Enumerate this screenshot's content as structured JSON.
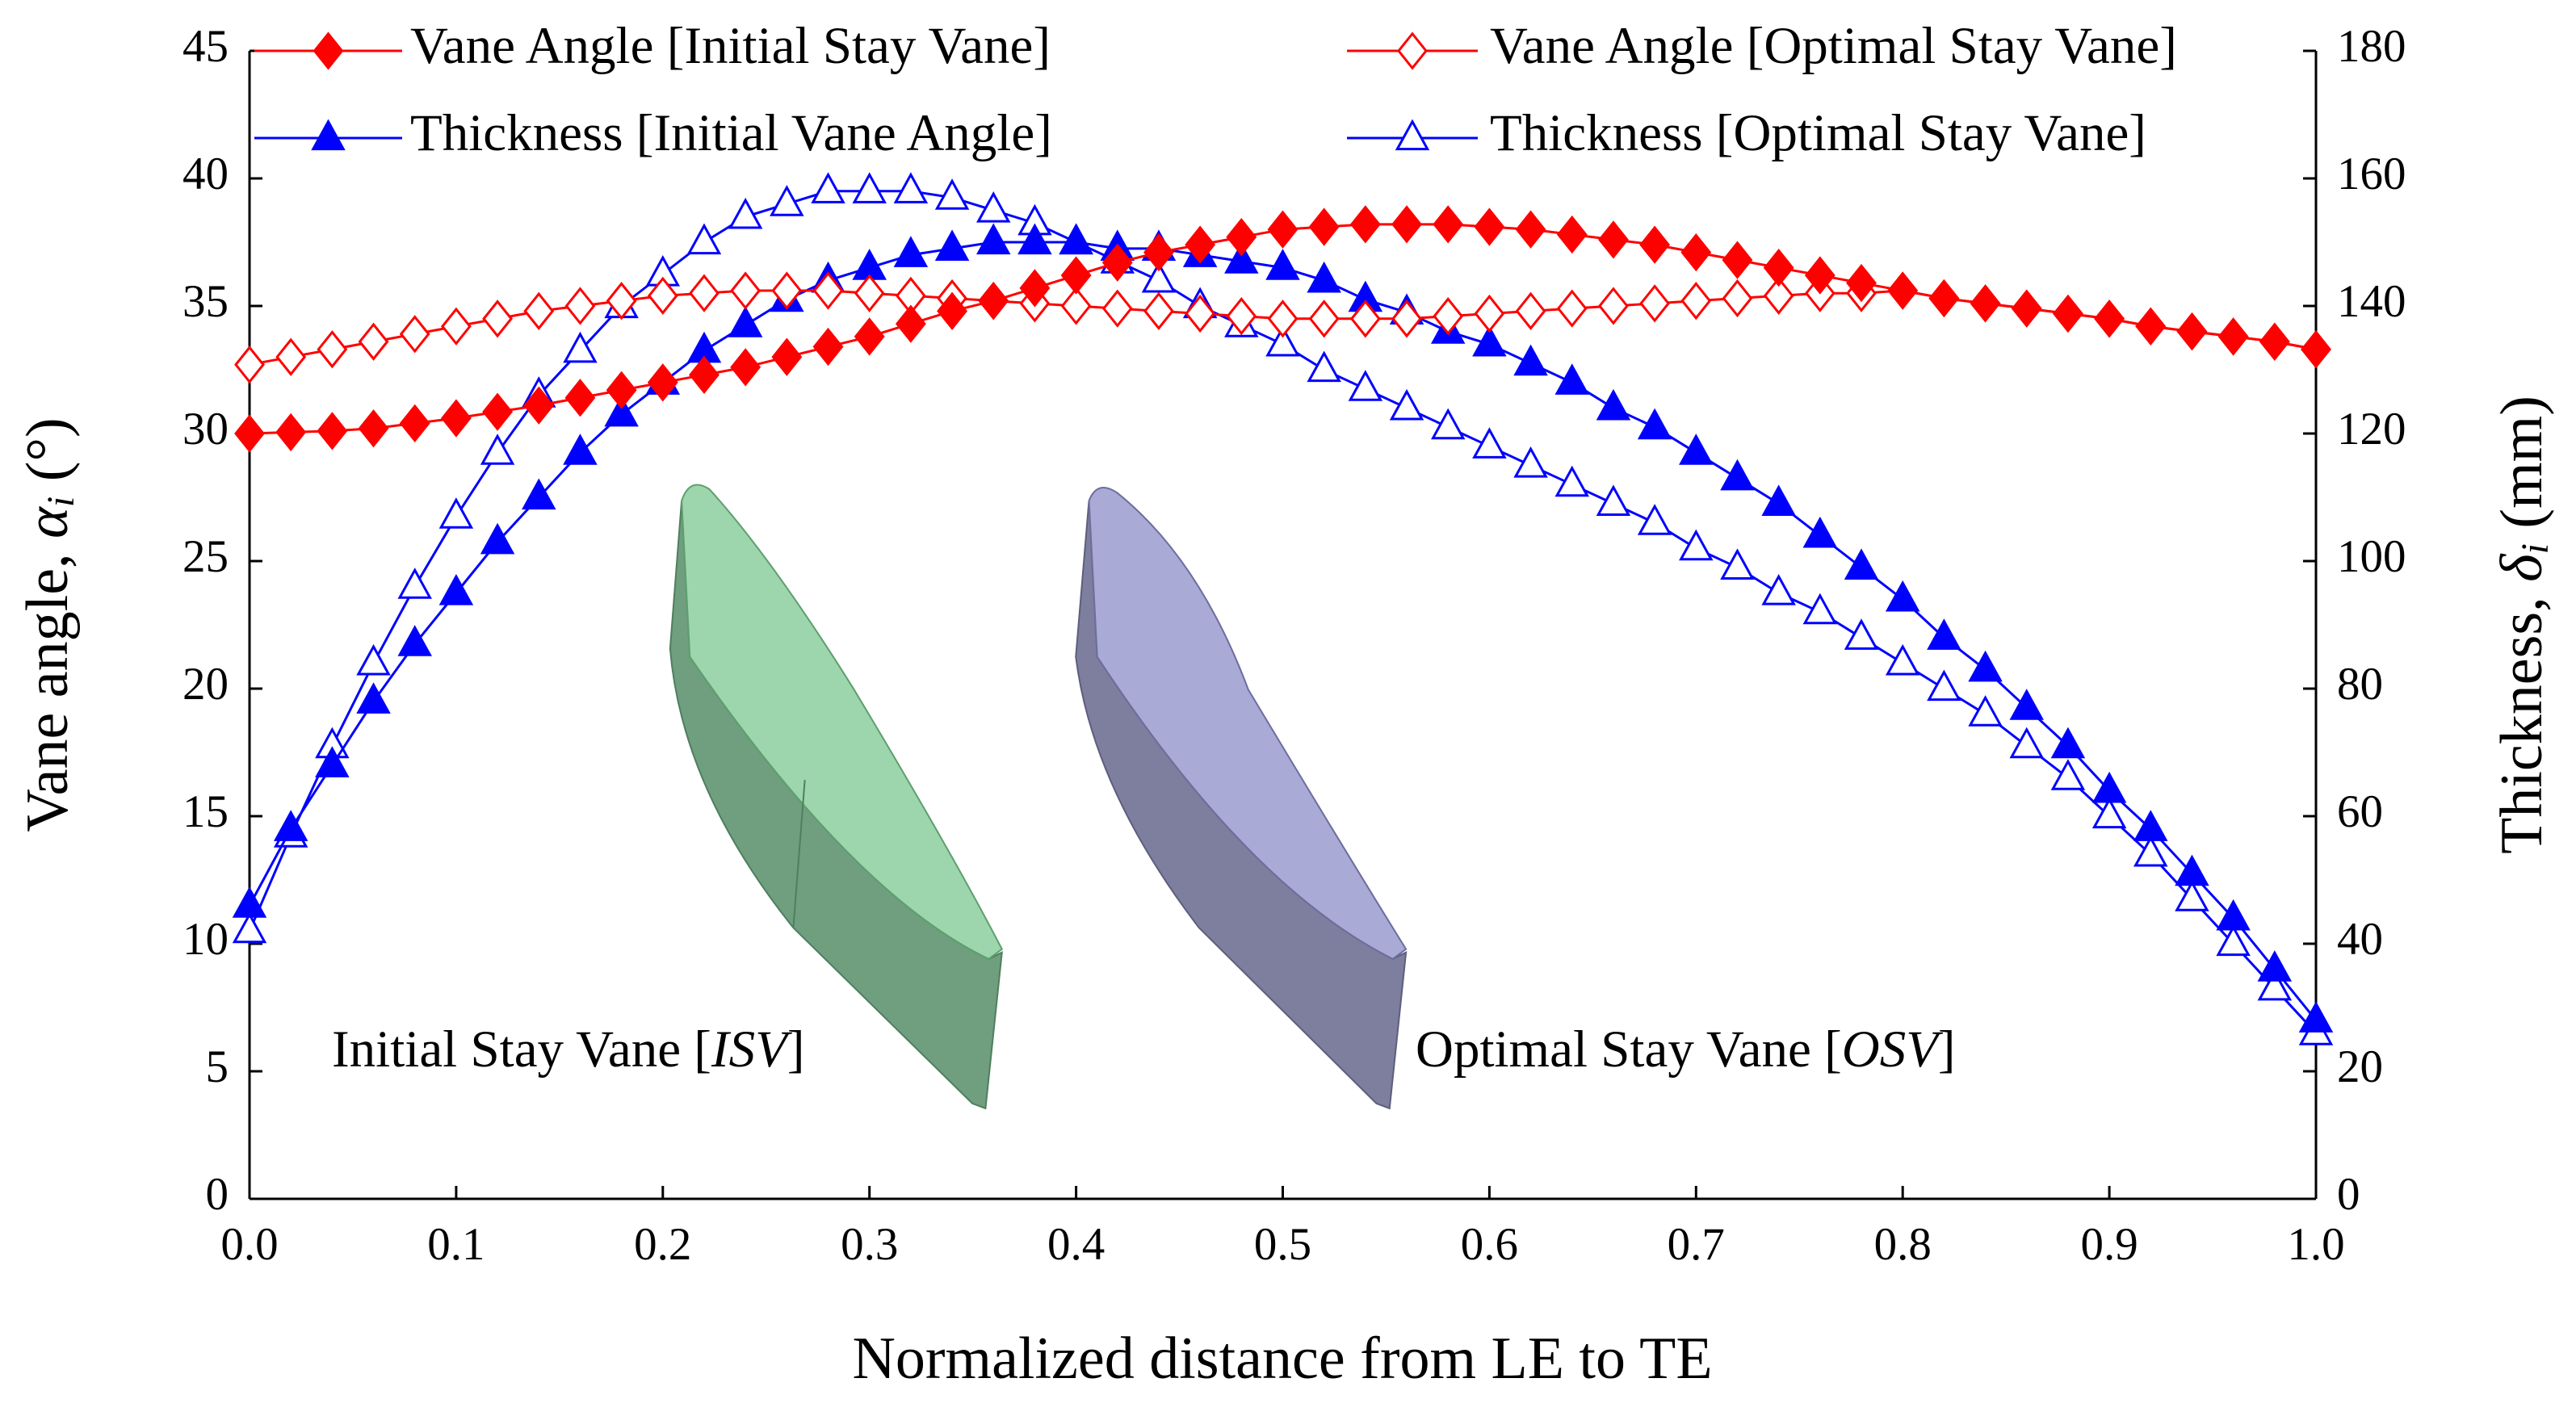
{
  "chart_data": {
    "type": "line",
    "xlabel": "Normalized distance from LE to TE",
    "ylabel": [
      "Vane angle, ",
      "α",
      "i",
      " (°)"
    ],
    "y2label": [
      "Thickness, ",
      "δ",
      "i",
      " (mm)"
    ],
    "annotations": [
      [
        "Initial Stay Vane [",
        "ISV",
        "]"
      ],
      [
        "Optimal Stay Vane [",
        "OSV",
        "]"
      ]
    ],
    "x": [
      0,
      0.02,
      0.04,
      0.06,
      0.08,
      0.1,
      0.12,
      0.14,
      0.16,
      0.18,
      0.2,
      0.22,
      0.24,
      0.26,
      0.28,
      0.3,
      0.32,
      0.34,
      0.36,
      0.38,
      0.4,
      0.42,
      0.44,
      0.46,
      0.48,
      0.5,
      0.52,
      0.54,
      0.56,
      0.58,
      0.6,
      0.62,
      0.64,
      0.66,
      0.68,
      0.7,
      0.72,
      0.74,
      0.76,
      0.78,
      0.8,
      0.82,
      0.84,
      0.86,
      0.88,
      0.9,
      0.92,
      0.94,
      0.96,
      0.98,
      1.0
    ],
    "series": [
      {
        "name": "Vane Angle [Initial Stay Vane]",
        "color": "#ff0000",
        "marker": "diamond",
        "filled": true,
        "axis": "y",
        "values": [
          30.0,
          30.05,
          30.1,
          30.2,
          30.4,
          30.6,
          30.85,
          31.1,
          31.4,
          31.7,
          32.0,
          32.3,
          32.6,
          33.0,
          33.4,
          33.8,
          34.3,
          34.8,
          35.2,
          35.7,
          36.2,
          36.7,
          37.1,
          37.4,
          37.7,
          38.0,
          38.1,
          38.2,
          38.2,
          38.2,
          38.1,
          38.0,
          37.8,
          37.6,
          37.4,
          37.1,
          36.8,
          36.5,
          36.2,
          35.9,
          35.6,
          35.3,
          35.1,
          34.9,
          34.7,
          34.5,
          34.2,
          34.0,
          33.8,
          33.6,
          33.3
        ]
      },
      {
        "name": "Vane Angle [Optimal Stay Vane]",
        "color": "#ff0000",
        "marker": "diamond",
        "filled": false,
        "axis": "y",
        "values": [
          32.7,
          33.0,
          33.3,
          33.6,
          33.9,
          34.2,
          34.5,
          34.8,
          35.0,
          35.2,
          35.4,
          35.5,
          35.6,
          35.6,
          35.6,
          35.5,
          35.4,
          35.3,
          35.2,
          35.1,
          35.0,
          34.9,
          34.8,
          34.7,
          34.6,
          34.5,
          34.5,
          34.5,
          34.5,
          34.6,
          34.7,
          34.8,
          34.9,
          35.0,
          35.1,
          35.2,
          35.3,
          35.4,
          35.5,
          35.5,
          35.6,
          35.3,
          35.1,
          34.9,
          34.7,
          34.5,
          34.2,
          34.0,
          33.8,
          33.6,
          33.3
        ]
      },
      {
        "name": "Thickness [Initial Vane Angle]",
        "color": "#0000ff",
        "marker": "triangle",
        "filled": true,
        "axis": "y2",
        "values": [
          46,
          58,
          68,
          78,
          87,
          95,
          103,
          110,
          117,
          123,
          128,
          133,
          137,
          141,
          144,
          146,
          148,
          149,
          150,
          150,
          150,
          149,
          149,
          148,
          147,
          146,
          144,
          141,
          139,
          136,
          134,
          131,
          128,
          124,
          121,
          117,
          113,
          109,
          104,
          99,
          94,
          88,
          83,
          77,
          71,
          64,
          58,
          51,
          44,
          36,
          28
        ]
      },
      {
        "name": "Thickness [Optimal Stay Vane]",
        "color": "#0000ff",
        "marker": "triangle",
        "filled": false,
        "axis": "y2",
        "values": [
          42,
          57,
          71,
          84,
          96,
          107,
          117,
          126,
          133,
          140,
          145,
          150,
          154,
          156,
          158,
          158,
          158,
          157,
          155,
          153,
          150,
          147,
          144,
          140,
          137,
          134,
          130,
          127,
          124,
          121,
          118,
          115,
          112,
          109,
          106,
          102,
          99,
          95,
          92,
          88,
          84,
          80,
          76,
          71,
          66,
          60,
          54,
          47,
          40,
          33,
          26
        ]
      }
    ],
    "xlim": [
      0,
      1
    ],
    "xticks": [
      {
        "value": 0,
        "label": "0.0"
      },
      {
        "value": 0.1,
        "label": "0.1"
      },
      {
        "value": 0.2,
        "label": "0.2"
      },
      {
        "value": 0.3,
        "label": "0.3"
      },
      {
        "value": 0.4,
        "label": "0.4"
      },
      {
        "value": 0.5,
        "label": "0.5"
      },
      {
        "value": 0.6,
        "label": "0.6"
      },
      {
        "value": 0.7,
        "label": "0.7"
      },
      {
        "value": 0.8,
        "label": "0.8"
      },
      {
        "value": 0.9,
        "label": "0.9"
      },
      {
        "value": 1,
        "label": "1.0"
      }
    ],
    "ylim": [
      0,
      45
    ],
    "yticks": [
      0,
      5,
      10,
      15,
      20,
      25,
      30,
      35,
      40,
      45
    ],
    "y2lim": [
      0,
      180
    ],
    "y2ticks": [
      0,
      20,
      40,
      60,
      80,
      100,
      120,
      140,
      160,
      180
    ],
    "grid": false
  }
}
